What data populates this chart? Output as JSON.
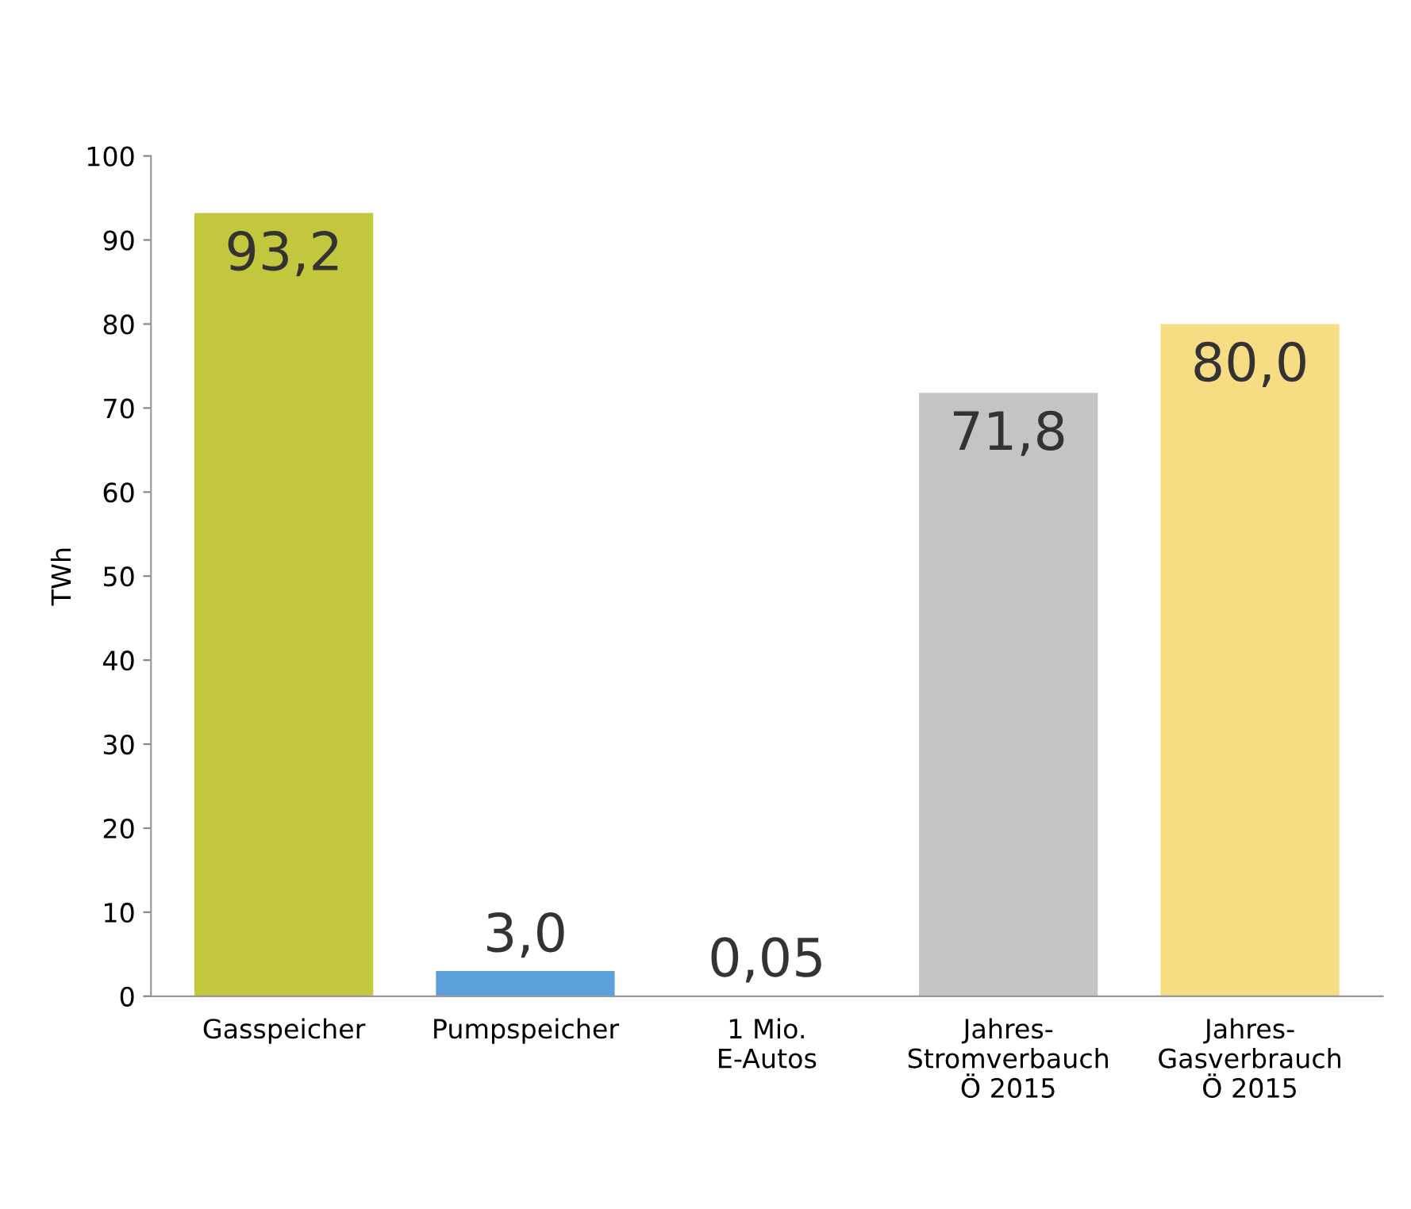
{
  "chart_data": {
    "type": "bar",
    "ylabel": "TWh",
    "categories": [
      "Gasspeicher",
      "Pumpspeicher",
      "1 Mio.\nE-Autos",
      "Jahres-\nStromverbauch\nÖ 2015",
      "Jahres-\nGasverbrauch\nÖ 2015"
    ],
    "values": [
      93.2,
      3.0,
      0.05,
      71.8,
      80.0
    ],
    "colors": [
      "#c3c73d",
      "#5b9fdb",
      "#7f7f7f",
      "#c4c4c4",
      "#f6dc82"
    ],
    "value_labels": [
      "93,2",
      "3,0",
      "0,05",
      "71,8",
      "80,0"
    ],
    "ylim": [
      0,
      100
    ],
    "yticks": [
      0,
      10,
      20,
      30,
      40,
      50,
      60,
      70,
      80,
      90,
      100
    ],
    "grid": false,
    "legend": false
  }
}
